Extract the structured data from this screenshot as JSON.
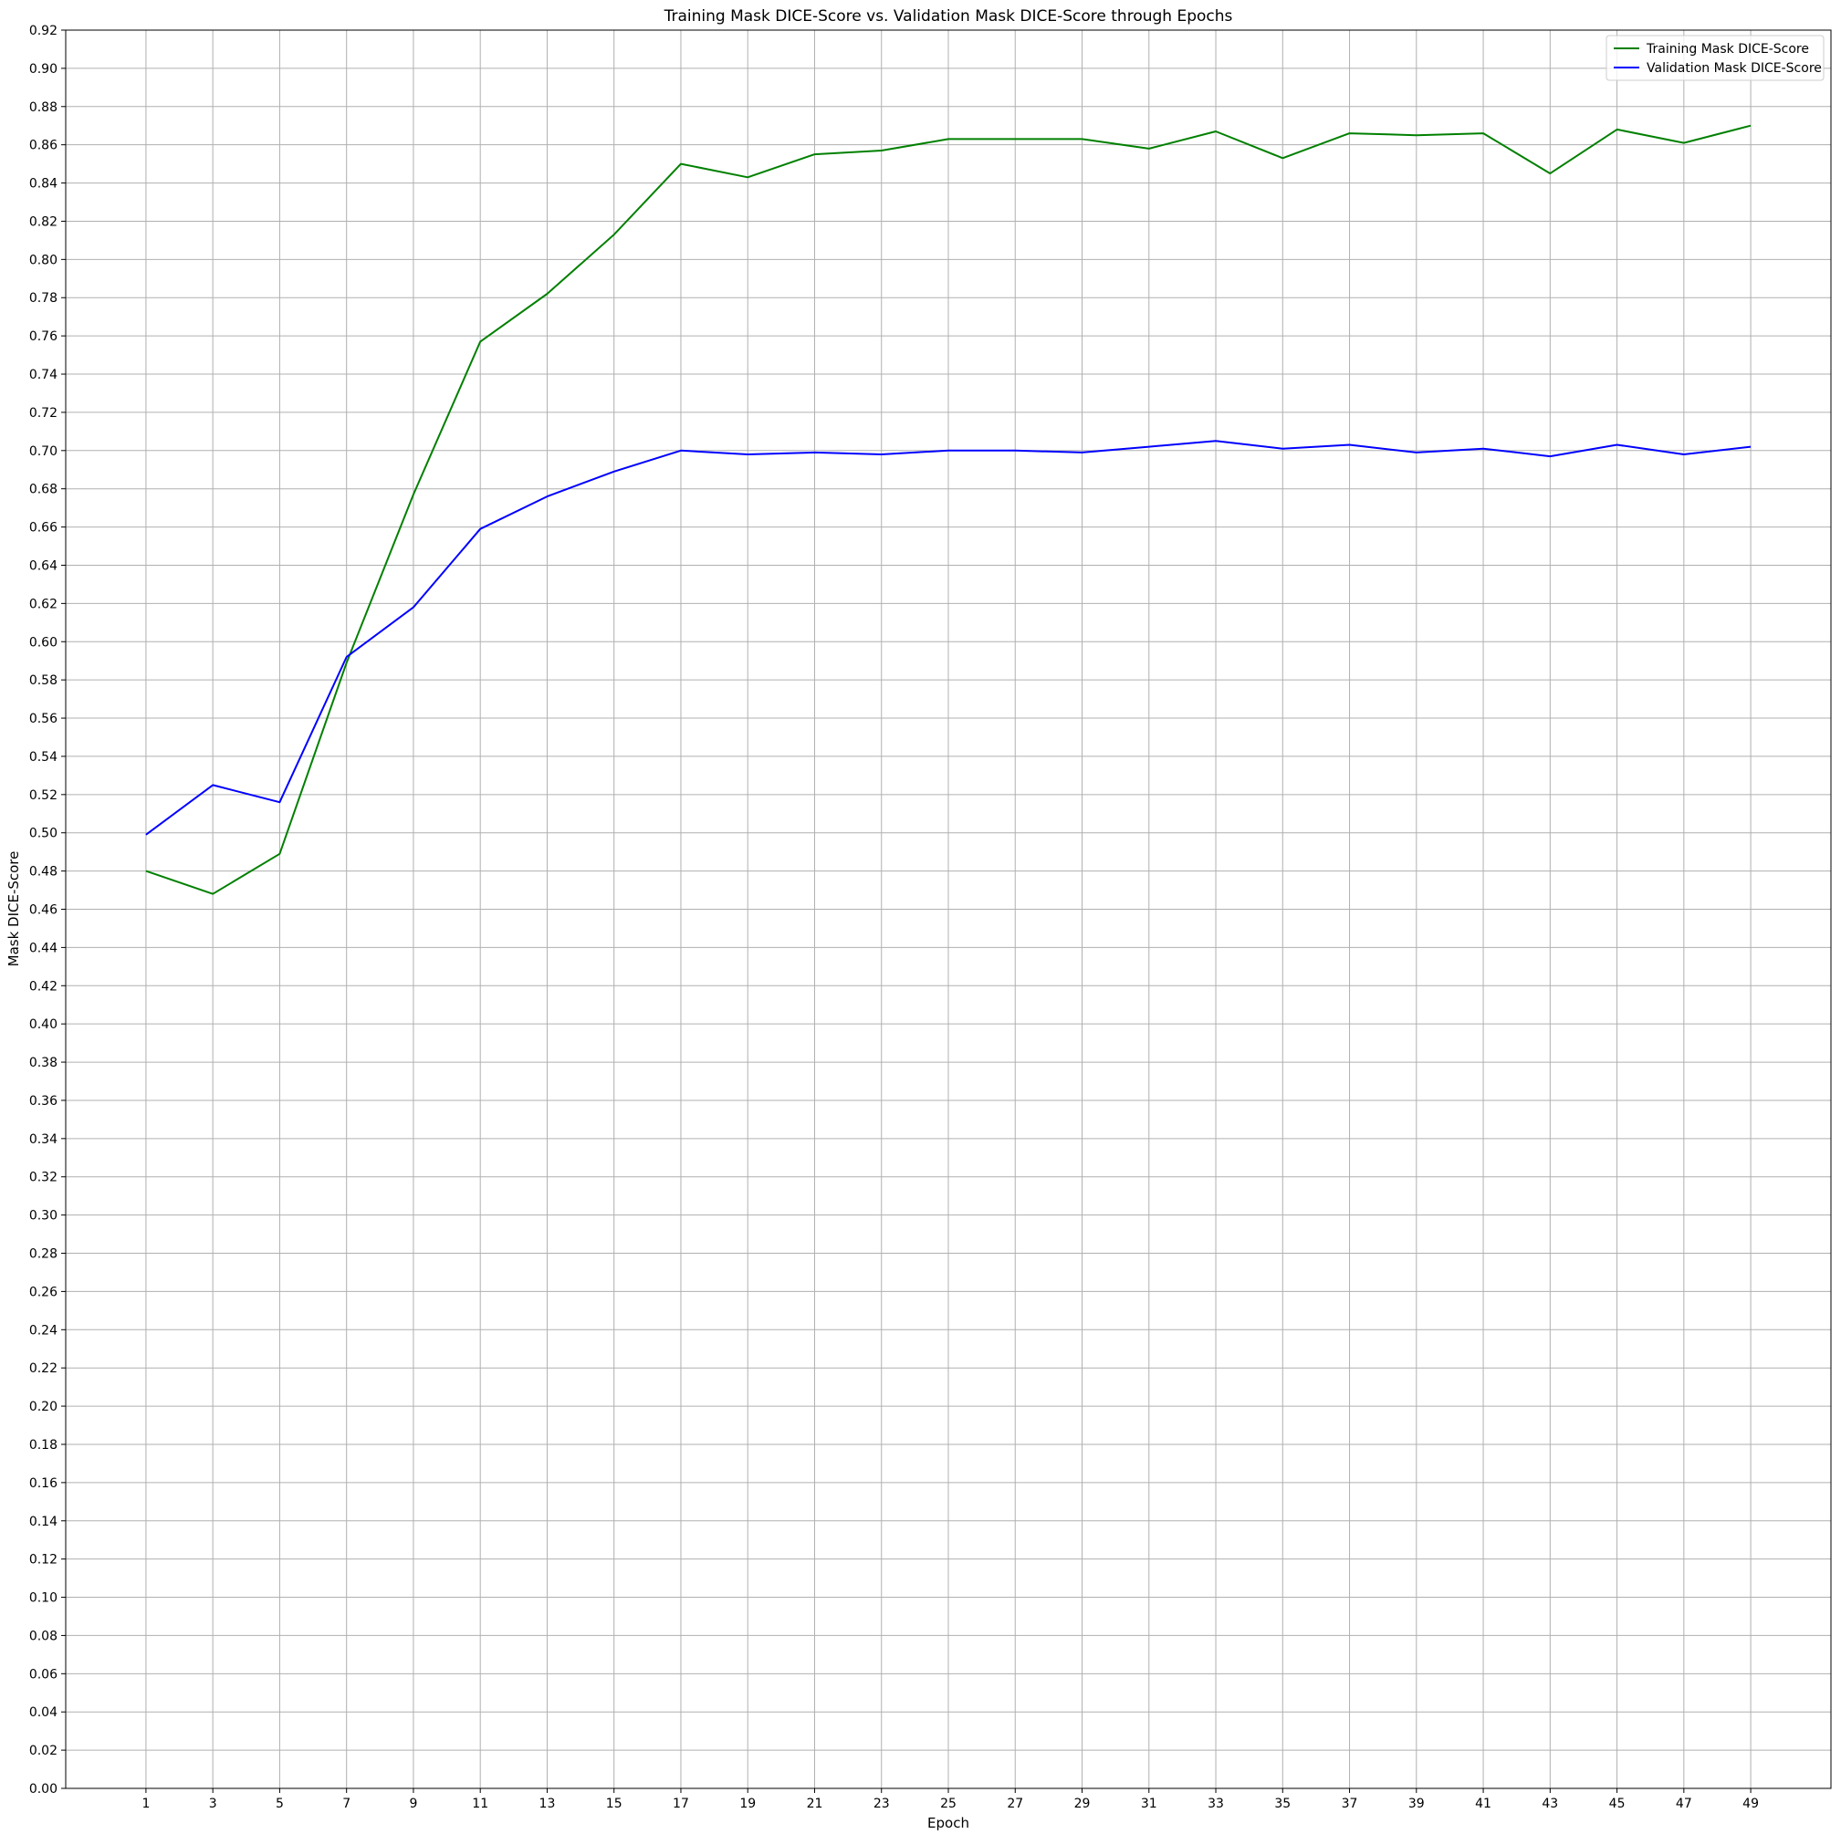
{
  "chart_data": {
    "type": "line",
    "title": "Training Mask DICE-Score vs. Validation Mask DICE-Score through Epochs",
    "xlabel": "Epoch",
    "ylabel": "Mask DICE-Score",
    "xlim": [
      -1.4,
      51.4
    ],
    "ylim": [
      0,
      0.92
    ],
    "x_ticks": [
      "1",
      "3",
      "5",
      "7",
      "9",
      "11",
      "13",
      "15",
      "17",
      "19",
      "21",
      "23",
      "25",
      "27",
      "29",
      "31",
      "33",
      "35",
      "37",
      "39",
      "41",
      "43",
      "45",
      "47",
      "49"
    ],
    "y_ticks": [
      "0.00",
      "0.02",
      "0.04",
      "0.06",
      "0.08",
      "0.10",
      "0.12",
      "0.14",
      "0.16",
      "0.18",
      "0.20",
      "0.22",
      "0.24",
      "0.26",
      "0.28",
      "0.30",
      "0.32",
      "0.34",
      "0.36",
      "0.38",
      "0.40",
      "0.42",
      "0.44",
      "0.46",
      "0.48",
      "0.50",
      "0.52",
      "0.54",
      "0.56",
      "0.58",
      "0.60",
      "0.62",
      "0.64",
      "0.66",
      "0.68",
      "0.70",
      "0.72",
      "0.74",
      "0.76",
      "0.78",
      "0.80",
      "0.82",
      "0.84",
      "0.86",
      "0.88",
      "0.90",
      "0.92"
    ],
    "grid": true,
    "legend_position": "top-right",
    "x": [
      1,
      3,
      5,
      7,
      9,
      11,
      13,
      15,
      17,
      19,
      21,
      23,
      25,
      27,
      29,
      31,
      33,
      35,
      37,
      39,
      41,
      43,
      45,
      47,
      49
    ],
    "series": [
      {
        "name": "Training Mask DICE-Score",
        "color": "#008000",
        "values": [
          0.48,
          0.468,
          0.489,
          0.589,
          0.677,
          0.757,
          0.782,
          0.813,
          0.85,
          0.843,
          0.855,
          0.857,
          0.863,
          0.863,
          0.863,
          0.858,
          0.867,
          0.853,
          0.866,
          0.865,
          0.866,
          0.845,
          0.868,
          0.861,
          0.87
        ]
      },
      {
        "name": "Validation Mask DICE-Score",
        "color": "#0000ff",
        "values": [
          0.499,
          0.525,
          0.516,
          0.592,
          0.618,
          0.659,
          0.676,
          0.689,
          0.7,
          0.698,
          0.699,
          0.698,
          0.7,
          0.7,
          0.699,
          0.702,
          0.705,
          0.701,
          0.703,
          0.699,
          0.701,
          0.697,
          0.703,
          0.698,
          0.702
        ]
      }
    ]
  }
}
